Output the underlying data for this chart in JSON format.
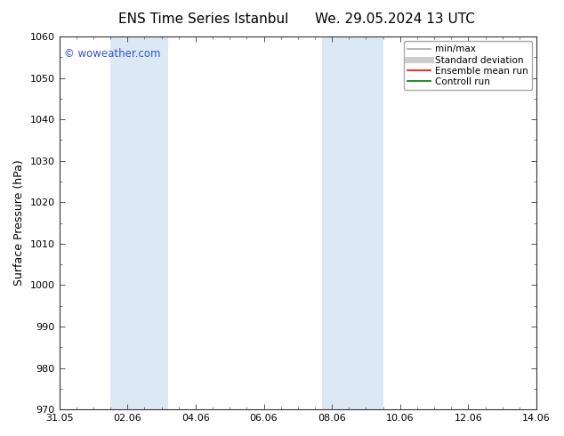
{
  "title_left": "ENS Time Series Istanbul",
  "title_right": "We. 29.05.2024 13 UTC",
  "ylabel": "Surface Pressure (hPa)",
  "ylim": [
    970,
    1060
  ],
  "yticks": [
    970,
    980,
    990,
    1000,
    1010,
    1020,
    1030,
    1040,
    1050,
    1060
  ],
  "xtick_labels": [
    "31.05",
    "02.06",
    "04.06",
    "06.06",
    "08.06",
    "10.06",
    "12.06",
    "14.06"
  ],
  "xtick_positions": [
    0,
    2,
    4,
    6,
    8,
    10,
    12,
    14
  ],
  "xlim": [
    0,
    14
  ],
  "watermark": "© woweather.com",
  "watermark_color": "#3355cc",
  "bg_color": "#ffffff",
  "plot_bg_color": "#ffffff",
  "shaded_regions": [
    {
      "xstart": 1.5,
      "xend": 3.2,
      "color": "#dce9f5"
    },
    {
      "xstart": 7.7,
      "xend": 9.5,
      "color": "#dce9f5"
    }
  ],
  "legend_items": [
    {
      "label": "min/max",
      "color": "#aaaaaa",
      "lw": 1.2,
      "style": "solid"
    },
    {
      "label": "Standard deviation",
      "color": "#cccccc",
      "lw": 5,
      "style": "solid"
    },
    {
      "label": "Ensemble mean run",
      "color": "#ff0000",
      "lw": 1.2,
      "style": "solid"
    },
    {
      "label": "Controll run",
      "color": "#007700",
      "lw": 1.2,
      "style": "solid"
    }
  ],
  "title_fontsize": 11,
  "ylabel_fontsize": 9,
  "tick_fontsize": 8,
  "legend_fontsize": 7.5,
  "watermark_fontsize": 8.5
}
